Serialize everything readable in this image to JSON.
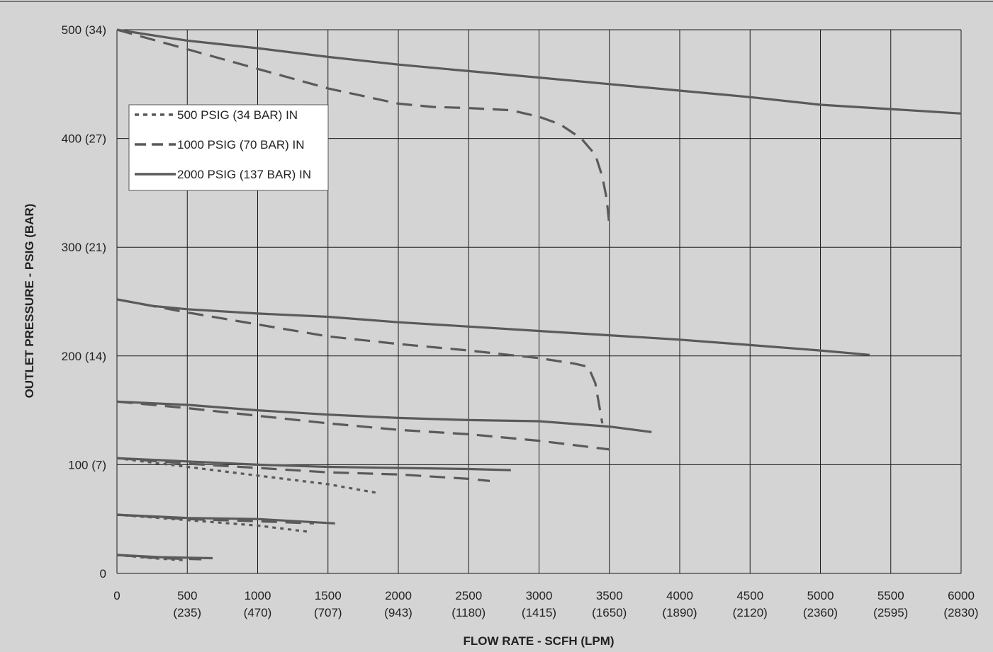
{
  "chart_data": {
    "type": "line",
    "title": "",
    "xlabel": "FLOW RATE - SCFH (LPM)",
    "ylabel": "OUTLET PRESSURE - PSIG (BAR)",
    "xlim": [
      0,
      6000
    ],
    "ylim": [
      0,
      500
    ],
    "grid": true,
    "legend_position": "top-left",
    "x_ticks": [
      {
        "value": 0,
        "label": "0",
        "sublabel": ""
      },
      {
        "value": 500,
        "label": "500",
        "sublabel": "(235)"
      },
      {
        "value": 1000,
        "label": "1000",
        "sublabel": "(470)"
      },
      {
        "value": 1500,
        "label": "1500",
        "sublabel": "(707)"
      },
      {
        "value": 2000,
        "label": "2000",
        "sublabel": "(943)"
      },
      {
        "value": 2500,
        "label": "2500",
        "sublabel": "(1180)"
      },
      {
        "value": 3000,
        "label": "3000",
        "sublabel": "(1415)"
      },
      {
        "value": 3500,
        "label": "3500",
        "sublabel": "(1650)"
      },
      {
        "value": 4000,
        "label": "4000",
        "sublabel": "(1890)"
      },
      {
        "value": 4500,
        "label": "4500",
        "sublabel": "(2120)"
      },
      {
        "value": 5000,
        "label": "5000",
        "sublabel": "(2360)"
      },
      {
        "value": 5500,
        "label": "5500",
        "sublabel": "(2595)"
      },
      {
        "value": 6000,
        "label": "6000",
        "sublabel": "(2830)"
      }
    ],
    "y_ticks": [
      {
        "value": 0,
        "label": "0"
      },
      {
        "value": 100,
        "label": "100 (7)"
      },
      {
        "value": 200,
        "label": "200 (14)"
      },
      {
        "value": 300,
        "label": "300 (21)"
      },
      {
        "value": 400,
        "label": "400 (27)"
      },
      {
        "value": 500,
        "label": "500 (34)"
      }
    ],
    "legend": [
      {
        "label": "500 PSIG (34 BAR) IN",
        "style": "dotted"
      },
      {
        "label": "1000 PSIG (70 BAR) IN",
        "style": "dashed"
      },
      {
        "label": "2000 PSIG (137 BAR) IN",
        "style": "solid"
      }
    ],
    "colors": {
      "background": "#d4d4d4",
      "grid": "#1a1a1a",
      "line": "#5a5a5a"
    },
    "series": [
      {
        "style": "solid",
        "x": [
          0,
          500,
          1000,
          1500,
          2000,
          2500,
          3000,
          3500,
          4000,
          4500,
          5000,
          5500,
          6000
        ],
        "y": [
          500,
          490,
          483,
          475,
          468,
          462,
          456,
          450,
          444,
          438,
          431,
          427,
          423
        ]
      },
      {
        "style": "dashed",
        "x": [
          0,
          500,
          1000,
          1500,
          2000,
          2250,
          2500,
          2800,
          3000,
          3150,
          3300,
          3400,
          3450,
          3480,
          3500
        ],
        "y": [
          500,
          482,
          464,
          446,
          432,
          429,
          428,
          426,
          420,
          413,
          400,
          385,
          365,
          345,
          320
        ]
      },
      {
        "style": "solid",
        "x": [
          0,
          250,
          500,
          1000,
          1500,
          2000,
          2500,
          3000,
          3500,
          4000,
          4500,
          5000,
          5350
        ],
        "y": [
          252,
          246,
          243,
          239,
          236,
          231,
          227,
          223,
          219,
          215,
          210,
          205,
          201
        ]
      },
      {
        "style": "dashed",
        "x": [
          0,
          500,
          1000,
          1500,
          2000,
          2500,
          3000,
          3250,
          3350,
          3400,
          3450
        ],
        "y": [
          252,
          240,
          229,
          218,
          211,
          205,
          198,
          193,
          190,
          175,
          138
        ]
      },
      {
        "style": "solid",
        "x": [
          0,
          500,
          1000,
          1500,
          2000,
          2500,
          3000,
          3500,
          3800
        ],
        "y": [
          158,
          155,
          150,
          146,
          143,
          141,
          140,
          135,
          130
        ]
      },
      {
        "style": "dashed",
        "x": [
          0,
          500,
          1000,
          1500,
          2000,
          2500,
          3000,
          3500
        ],
        "y": [
          158,
          152,
          145,
          138,
          132,
          128,
          122,
          114
        ]
      },
      {
        "style": "solid",
        "x": [
          0,
          500,
          1000,
          1500,
          2000,
          2500,
          2800
        ],
        "y": [
          106,
          103,
          100,
          98,
          97,
          96,
          95
        ]
      },
      {
        "style": "dashed",
        "x": [
          0,
          500,
          1000,
          1500,
          2000,
          2500,
          2650
        ],
        "y": [
          106,
          101,
          97,
          93,
          91,
          87,
          85
        ]
      },
      {
        "style": "dotted",
        "x": [
          0,
          500,
          1000,
          1500,
          1850
        ],
        "y": [
          106,
          98,
          90,
          82,
          74
        ]
      },
      {
        "style": "solid",
        "x": [
          0,
          500,
          1000,
          1550
        ],
        "y": [
          54,
          51,
          50,
          46
        ]
      },
      {
        "style": "dashed",
        "x": [
          0,
          500,
          1000,
          1400
        ],
        "y": [
          54,
          50,
          48,
          46
        ]
      },
      {
        "style": "dotted",
        "x": [
          0,
          500,
          1000,
          1380
        ],
        "y": [
          54,
          49,
          44,
          38
        ]
      },
      {
        "style": "solid",
        "x": [
          0,
          300,
          680
        ],
        "y": [
          17,
          15,
          14
        ]
      },
      {
        "style": "dashed",
        "x": [
          0,
          300,
          600
        ],
        "y": [
          17,
          14,
          13
        ]
      },
      {
        "style": "dotted",
        "x": [
          0,
          250,
          500
        ],
        "y": [
          17,
          14,
          12
        ]
      }
    ]
  }
}
